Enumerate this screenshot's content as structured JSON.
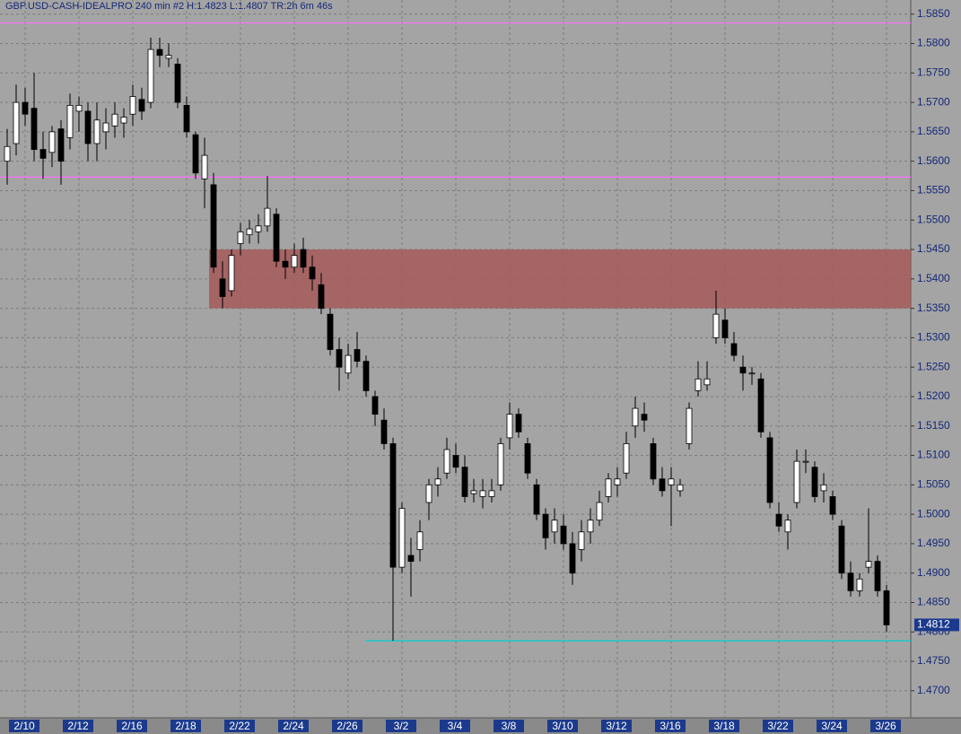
{
  "chart_data": {
    "type": "candlestick",
    "title": "GBP.USD-CASH-IDEALPRO  240 min  #2  H:1.4823  L:1.4807  TR:2h 6m 46s",
    "categories": [
      null,
      null,
      "2/10",
      null,
      null,
      null,
      null,
      null,
      "2/12",
      null,
      null,
      null,
      null,
      null,
      "2/16",
      null,
      null,
      null,
      null,
      null,
      "2/18",
      null,
      null,
      null,
      null,
      null,
      "2/22",
      null,
      null,
      null,
      null,
      null,
      "2/24",
      null,
      null,
      null,
      null,
      null,
      "2/26",
      null,
      null,
      null,
      null,
      null,
      "3/2",
      null,
      null,
      null,
      null,
      null,
      "3/4",
      null,
      null,
      null,
      null,
      null,
      "3/8",
      null,
      null,
      null,
      null,
      null,
      "3/10",
      null,
      null,
      null,
      null,
      null,
      "3/12",
      null,
      null,
      null,
      null,
      null,
      "3/16",
      null,
      null,
      null,
      null,
      null,
      "3/18",
      null,
      null,
      null,
      null,
      null,
      "3/22",
      null,
      null,
      null,
      null,
      null,
      "3/24",
      null,
      null,
      null,
      null,
      null,
      "3/26"
    ],
    "open": [
      1.56,
      1.563,
      1.57,
      1.569,
      1.562,
      1.5615,
      1.5655,
      1.564,
      1.5685,
      1.5685,
      1.563,
      1.565,
      1.566,
      1.5665,
      1.568,
      1.5705,
      1.57,
      1.579,
      1.5775,
      1.5765,
      1.5695,
      1.5645,
      1.557,
      1.556,
      1.54,
      1.538,
      1.546,
      1.5475,
      1.548,
      1.549,
      1.551,
      1.543,
      1.542,
      1.545,
      1.542,
      1.539,
      1.534,
      1.528,
      1.524,
      1.528,
      1.526,
      1.52,
      1.516,
      1.512,
      1.491,
      1.493,
      1.494,
      1.502,
      1.505,
      1.507,
      1.51,
      1.508,
      1.5035,
      1.503,
      1.503,
      1.505,
      1.513,
      1.517,
      1.512,
      1.505,
      1.5,
      1.497,
      1.498,
      1.495,
      1.494,
      1.497,
      1.499,
      1.503,
      1.505,
      1.507,
      1.515,
      1.517,
      1.512,
      1.506,
      1.505,
      1.504,
      1.512,
      1.521,
      1.522,
      1.53,
      1.533,
      1.529,
      1.525,
      1.524,
      1.523,
      1.513,
      1.5,
      1.497,
      1.502,
      1.509,
      1.508,
      1.504,
      1.503,
      1.498,
      1.49,
      1.487,
      1.491,
      1.492,
      1.487
    ],
    "high": [
      1.5655,
      1.573,
      1.5725,
      1.575,
      1.565,
      1.566,
      1.567,
      1.5715,
      1.571,
      1.57,
      1.57,
      1.569,
      1.57,
      1.569,
      1.573,
      1.5725,
      1.581,
      1.581,
      1.58,
      1.5775,
      1.571,
      1.565,
      1.564,
      1.558,
      1.543,
      1.545,
      1.5495,
      1.55,
      1.551,
      1.5575,
      1.552,
      1.545,
      1.546,
      1.547,
      1.544,
      1.541,
      1.535,
      1.53,
      1.529,
      1.531,
      1.527,
      1.521,
      1.518,
      1.513,
      1.502,
      1.496,
      1.499,
      1.506,
      1.508,
      1.513,
      1.512,
      1.51,
      1.506,
      1.506,
      1.506,
      1.513,
      1.519,
      1.518,
      1.513,
      1.506,
      1.501,
      1.501,
      1.5,
      1.497,
      1.499,
      1.501,
      1.504,
      1.507,
      1.508,
      1.514,
      1.52,
      1.519,
      1.513,
      1.508,
      1.508,
      1.506,
      1.519,
      1.526,
      1.526,
      1.538,
      1.535,
      1.531,
      1.527,
      1.525,
      1.524,
      1.514,
      1.502,
      1.5,
      1.511,
      1.511,
      1.509,
      1.507,
      1.504,
      1.499,
      1.492,
      1.49,
      1.501,
      1.493,
      1.488
    ],
    "low": [
      1.556,
      1.561,
      1.566,
      1.56,
      1.557,
      1.559,
      1.556,
      1.562,
      1.565,
      1.56,
      1.56,
      1.562,
      1.564,
      1.564,
      1.566,
      1.567,
      1.569,
      1.576,
      1.576,
      1.569,
      1.564,
      1.557,
      1.552,
      1.541,
      1.535,
      1.537,
      1.544,
      1.546,
      1.546,
      1.548,
      1.542,
      1.54,
      1.541,
      1.541,
      1.538,
      1.534,
      1.527,
      1.521,
      1.523,
      1.525,
      1.52,
      1.515,
      1.511,
      1.4785,
      1.49,
      1.486,
      1.492,
      1.499,
      1.503,
      1.506,
      1.507,
      1.502,
      1.502,
      1.501,
      1.502,
      1.504,
      1.511,
      1.513,
      1.506,
      1.499,
      1.494,
      1.495,
      1.494,
      1.488,
      1.492,
      1.495,
      1.498,
      1.502,
      1.503,
      1.506,
      1.513,
      1.514,
      1.505,
      1.503,
      1.498,
      1.503,
      1.511,
      1.52,
      1.521,
      1.529,
      1.529,
      1.526,
      1.521,
      1.522,
      1.513,
      1.501,
      1.497,
      1.494,
      1.501,
      1.507,
      1.502,
      1.502,
      1.499,
      1.489,
      1.486,
      1.486,
      1.49,
      1.486,
      1.48
    ],
    "close": [
      1.5625,
      1.57,
      1.568,
      1.562,
      1.5605,
      1.565,
      1.56,
      1.5695,
      1.5695,
      1.563,
      1.567,
      1.5665,
      1.568,
      1.5675,
      1.571,
      1.5685,
      1.579,
      1.578,
      1.578,
      1.57,
      1.565,
      1.558,
      1.561,
      1.542,
      1.537,
      1.544,
      1.548,
      1.5485,
      1.549,
      1.552,
      1.543,
      1.542,
      1.544,
      1.542,
      1.54,
      1.535,
      1.528,
      1.525,
      1.527,
      1.526,
      1.521,
      1.517,
      1.512,
      1.491,
      1.501,
      1.492,
      1.497,
      1.505,
      1.506,
      1.511,
      1.508,
      1.503,
      1.504,
      1.504,
      1.504,
      1.512,
      1.517,
      1.514,
      1.507,
      1.5,
      1.496,
      1.499,
      1.495,
      1.49,
      1.497,
      1.499,
      1.502,
      1.506,
      1.506,
      1.512,
      1.518,
      1.516,
      1.506,
      1.504,
      1.506,
      1.505,
      1.518,
      1.523,
      1.523,
      1.534,
      1.53,
      1.527,
      1.524,
      1.524,
      1.514,
      1.502,
      1.498,
      1.499,
      1.509,
      1.509,
      1.503,
      1.505,
      1.5,
      1.49,
      1.487,
      1.489,
      1.492,
      1.487,
      1.4812
    ],
    "up_color": "#ffffff",
    "down_color": "#000000",
    "ylim": [
      1.4654,
      1.5874
    ],
    "yticks": [
      {
        "value": 1.585,
        "label": "1.5850"
      },
      {
        "value": 1.58,
        "label": "1.5800"
      },
      {
        "value": 1.575,
        "label": "1.5750"
      },
      {
        "value": 1.57,
        "label": "1.5700"
      },
      {
        "value": 1.565,
        "label": "1.5650"
      },
      {
        "value": 1.56,
        "label": "1.5600"
      },
      {
        "value": 1.555,
        "label": "1.5550"
      },
      {
        "value": 1.55,
        "label": "1.5500"
      },
      {
        "value": 1.545,
        "label": "1.5450"
      },
      {
        "value": 1.54,
        "label": "1.5400"
      },
      {
        "value": 1.535,
        "label": "1.5350"
      },
      {
        "value": 1.53,
        "label": "1.5300"
      },
      {
        "value": 1.525,
        "label": "1.5250"
      },
      {
        "value": 1.52,
        "label": "1.5200"
      },
      {
        "value": 1.515,
        "label": "1.5150"
      },
      {
        "value": 1.51,
        "label": "1.5100"
      },
      {
        "value": 1.505,
        "label": "1.5050"
      },
      {
        "value": 1.5,
        "label": "1.5000"
      },
      {
        "value": 1.495,
        "label": "1.4950"
      },
      {
        "value": 1.49,
        "label": "1.4900"
      },
      {
        "value": 1.485,
        "label": "1.4850"
      },
      {
        "value": 1.48,
        "label": "1.4800"
      },
      {
        "value": 1.475,
        "label": "1.4750"
      },
      {
        "value": 1.47,
        "label": "1.4700"
      }
    ],
    "grid": true,
    "lines": [
      {
        "value": 1.5835,
        "color": "#ff70ff"
      },
      {
        "value": 1.5573,
        "color": "#ff70ff"
      },
      {
        "value": 1.4785,
        "color": "#00d0d0"
      }
    ],
    "zone": {
      "low": 1.535,
      "high": 1.545,
      "color": "#a65a5a"
    },
    "last_price": 1.4812
  }
}
